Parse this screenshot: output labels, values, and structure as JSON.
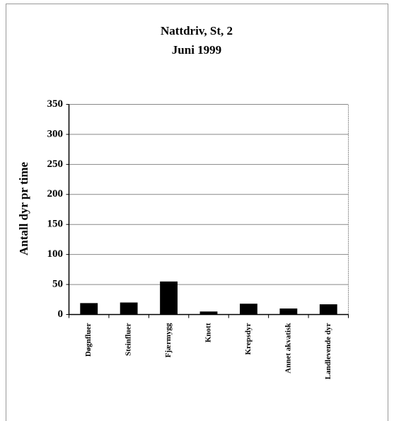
{
  "chart_data": {
    "type": "bar",
    "title": "Nattdriv, St, 2",
    "subtitle": "Juni 1999",
    "y_label": "Antall dyr pr time",
    "categories": [
      "Døgnfluer",
      "Steinfluer",
      "Fjærmygg",
      "Knott",
      "Krepsdyr",
      "Annet akvatisk",
      "Landlevende dyr"
    ],
    "values": [
      19,
      20,
      55,
      5,
      18,
      10,
      17
    ],
    "color": "#000000",
    "ylim": [
      0,
      350
    ],
    "yticks": [
      0,
      50,
      100,
      150,
      200,
      250,
      300,
      350
    ],
    "grid": true
  }
}
